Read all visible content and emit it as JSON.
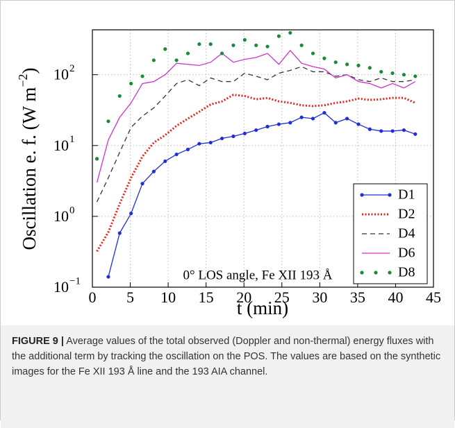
{
  "chart_data": {
    "type": "line",
    "log_y": true,
    "grid": true,
    "legend": "lower right",
    "xlabel": "t (min)",
    "ylabel": {
      "text": "Oscillation e. f. (W m",
      "sup": "−2",
      "end": ")"
    },
    "annotation": "0° LOS angle, Fe XII 193 Å",
    "x": [
      0.6,
      2.1,
      3.6,
      5.1,
      6.6,
      8.1,
      9.6,
      11.1,
      12.6,
      14.1,
      15.6,
      17.1,
      18.6,
      20.1,
      21.6,
      23.1,
      24.6,
      26.1,
      27.6,
      29.1,
      30.6,
      32.1,
      33.6,
      35.1,
      36.6,
      38.1,
      39.6,
      41.1,
      42.6
    ],
    "xlim": [
      0,
      45
    ],
    "xticks": [
      0,
      5,
      10,
      15,
      20,
      25,
      30,
      35,
      40,
      45
    ],
    "ylim": [
      0.1,
      430
    ],
    "yticks": [
      {
        "value": 0.1,
        "label": "10",
        "exponent": "−1"
      },
      {
        "value": 1,
        "label": "10",
        "exponent": "0"
      },
      {
        "value": 10,
        "label": "10",
        "exponent": "1"
      },
      {
        "value": 100,
        "label": "10",
        "exponent": "2"
      }
    ],
    "series": [
      {
        "name": "D1",
        "color": "#1f2fd6",
        "linestyle": "solid",
        "marker": true,
        "values": [
          null,
          0.14,
          0.58,
          1.1,
          2.9,
          4.3,
          6.0,
          7.5,
          8.8,
          10.6,
          11,
          12.6,
          13.5,
          14.8,
          16.5,
          18.5,
          20,
          21,
          25,
          24,
          29,
          21,
          24,
          20,
          17,
          16,
          16,
          16.5,
          14.5
        ]
      },
      {
        "name": "D2",
        "color": "#e8221b",
        "linestyle": "dotted",
        "marker": false,
        "values": [
          0.32,
          0.6,
          1.5,
          3.5,
          7,
          11,
          14,
          19,
          24,
          30,
          38,
          42,
          52,
          50,
          45,
          47,
          42,
          40,
          37,
          36,
          37,
          40,
          42,
          46,
          44,
          45,
          47,
          47,
          40
        ]
      },
      {
        "name": "D4",
        "color": "#333333",
        "linestyle": "dashed",
        "marker": false,
        "values": [
          1.6,
          3.5,
          8,
          18,
          26,
          34,
          50,
          75,
          85,
          70,
          90,
          80,
          80,
          105,
          95,
          85,
          105,
          115,
          130,
          110,
          110,
          95,
          100,
          85,
          80,
          90,
          80,
          80,
          85
        ]
      },
      {
        "name": "D6",
        "color": "#cc33cc",
        "linestyle": "solid",
        "marker": false,
        "values": [
          3,
          12,
          25,
          40,
          75,
          80,
          100,
          145,
          140,
          135,
          150,
          200,
          150,
          165,
          175,
          200,
          140,
          220,
          145,
          130,
          120,
          90,
          100,
          80,
          75,
          65,
          75,
          65,
          80
        ]
      },
      {
        "name": "D8",
        "color": "#1a8a3a",
        "linestyle": "none",
        "marker": true,
        "values": [
          6.5,
          22,
          50,
          75,
          95,
          160,
          230,
          160,
          200,
          270,
          270,
          200,
          260,
          310,
          260,
          250,
          350,
          390,
          260,
          200,
          170,
          150,
          140,
          135,
          125,
          110,
          105,
          100,
          95
        ]
      }
    ]
  },
  "caption": {
    "label": "FIGURE 9 |",
    "text": "Average values of the total observed (Doppler and non-thermal) energy fluxes with the additional term by tracking the oscillation on the POS. The values are based on the synthetic images for the Fe XII 193 Å line and the 193 AIA channel."
  }
}
